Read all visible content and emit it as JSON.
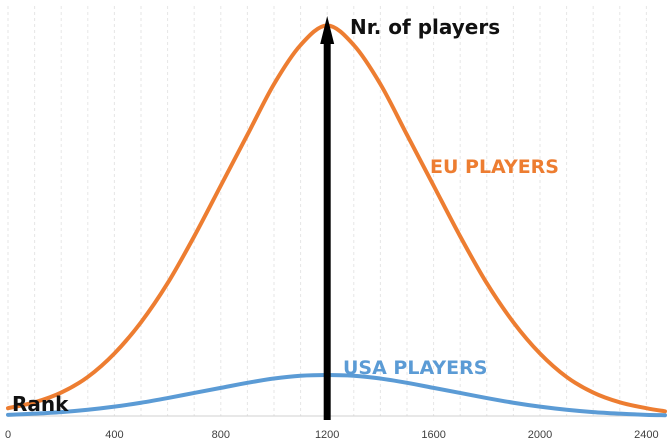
{
  "chart_data": {
    "type": "line",
    "title": "",
    "xlabel": "Rank",
    "ylabel": "Nr. of players",
    "xlim": [
      0,
      2470
    ],
    "ylim": [
      0,
      1.05
    ],
    "x_ticks": [
      0,
      400,
      800,
      1200,
      1600,
      2000,
      2400
    ],
    "grid": "vertical",
    "legend": "direct-labels",
    "series": [
      {
        "name": "EU PLAYERS",
        "color": "#ED7D31",
        "x": [
          0,
          100,
          200,
          300,
          400,
          500,
          600,
          700,
          800,
          900,
          1000,
          1100,
          1200,
          1300,
          1400,
          1500,
          1600,
          1700,
          1800,
          1900,
          2000,
          2100,
          2200,
          2300,
          2400,
          2470
        ],
        "y": [
          0.02,
          0.035,
          0.06,
          0.1,
          0.16,
          0.24,
          0.34,
          0.46,
          0.59,
          0.72,
          0.85,
          0.95,
          1.0,
          0.95,
          0.85,
          0.72,
          0.59,
          0.46,
          0.34,
          0.24,
          0.16,
          0.1,
          0.06,
          0.035,
          0.02,
          0.012
        ]
      },
      {
        "name": "USA PLAYERS",
        "color": "#5B9BD5",
        "x": [
          0,
          100,
          200,
          300,
          400,
          500,
          600,
          700,
          800,
          900,
          1000,
          1100,
          1200,
          1300,
          1400,
          1500,
          1600,
          1700,
          1800,
          1900,
          2000,
          2100,
          2200,
          2300,
          2400,
          2470
        ],
        "y": [
          0.003,
          0.006,
          0.01,
          0.016,
          0.024,
          0.034,
          0.046,
          0.059,
          0.072,
          0.085,
          0.096,
          0.103,
          0.105,
          0.103,
          0.096,
          0.085,
          0.072,
          0.059,
          0.046,
          0.034,
          0.024,
          0.016,
          0.01,
          0.006,
          0.003,
          0.002
        ]
      }
    ]
  }
}
